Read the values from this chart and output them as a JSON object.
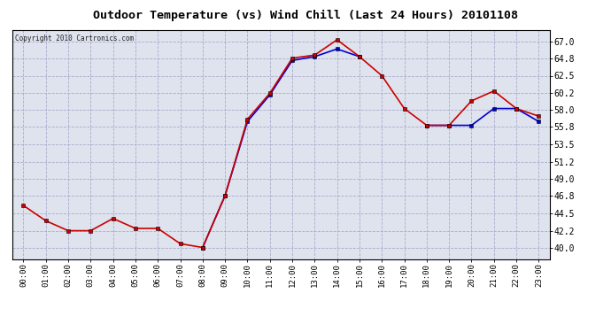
{
  "title": "Outdoor Temperature (vs) Wind Chill (Last 24 Hours) 20101108",
  "copyright": "Copyright 2010 Cartronics.com",
  "x_labels": [
    "00:00",
    "01:00",
    "02:00",
    "03:00",
    "04:00",
    "05:00",
    "06:00",
    "07:00",
    "08:00",
    "09:00",
    "10:00",
    "11:00",
    "12:00",
    "13:00",
    "14:00",
    "15:00",
    "16:00",
    "17:00",
    "18:00",
    "19:00",
    "20:00",
    "21:00",
    "22:00",
    "23:00"
  ],
  "temp_red": [
    45.5,
    43.5,
    42.2,
    42.2,
    43.8,
    42.5,
    42.5,
    40.5,
    40.0,
    46.8,
    56.8,
    60.2,
    64.8,
    65.2,
    67.2,
    65.0,
    62.5,
    58.2,
    56.0,
    56.0,
    59.2,
    60.5,
    58.2,
    57.2
  ],
  "wind_chill_blue": [
    null,
    null,
    null,
    null,
    null,
    null,
    null,
    null,
    40.0,
    46.8,
    56.5,
    60.0,
    64.5,
    65.0,
    66.0,
    65.0,
    null,
    null,
    56.0,
    56.0,
    56.0,
    58.2,
    58.2,
    56.5
  ],
  "ylim": [
    38.5,
    68.5
  ],
  "yticks": [
    40.0,
    42.2,
    44.5,
    46.8,
    49.0,
    51.2,
    53.5,
    55.8,
    58.0,
    60.2,
    62.5,
    64.8,
    67.0
  ],
  "bg_color": "#ffffff",
  "plot_bg": "#dfe3ee",
  "red_color": "#cc0000",
  "blue_color": "#0000cc",
  "grid_color": "#aaaacc",
  "title_color": "#000000",
  "marker": "s",
  "marker_size": 2.5,
  "linewidth": 1.2,
  "figwidth": 6.9,
  "figheight": 3.75,
  "dpi": 100
}
